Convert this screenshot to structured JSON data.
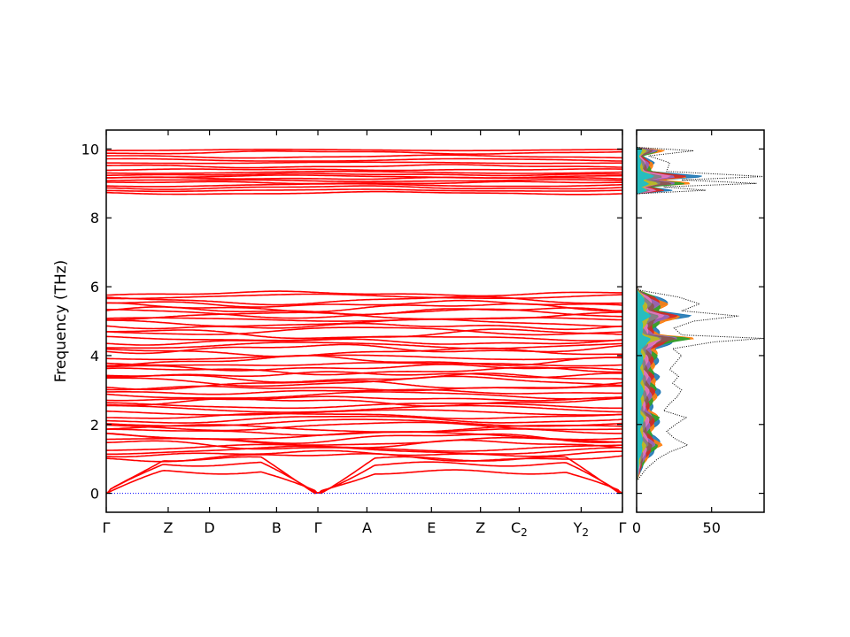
{
  "chart_data": [
    {
      "type": "line",
      "name": "phonon-band-structure",
      "ylabel": "Frequency (THz)",
      "ylim": [
        -0.55,
        10.55
      ],
      "yticks": [
        0,
        2,
        4,
        6,
        8,
        10
      ],
      "kpoint_labels": [
        {
          "label": "Γ",
          "sub": "",
          "x": 0.0
        },
        {
          "label": "Z",
          "sub": "",
          "x": 1.2
        },
        {
          "label": "D",
          "sub": "",
          "x": 2.0
        },
        {
          "label": "B",
          "sub": "",
          "x": 3.3
        },
        {
          "label": "Γ",
          "sub": "",
          "x": 4.1
        },
        {
          "label": "A",
          "sub": "",
          "x": 5.05
        },
        {
          "label": "E",
          "sub": "",
          "x": 6.3
        },
        {
          "label": "Z",
          "sub": "",
          "x": 7.25
        },
        {
          "label": "C",
          "sub": "2",
          "x": 8.0
        },
        {
          "label": "Y",
          "sub": "2",
          "x": 9.2
        },
        {
          "label": "Γ",
          "sub": "",
          "x": 10.0
        }
      ],
      "xlim": [
        0,
        10
      ],
      "color": "#ff0000",
      "zero_line_color": "#0000ff",
      "high_band_frequencies": [
        8.72,
        8.8,
        8.88,
        8.95,
        9.02,
        9.08,
        9.15,
        9.2,
        9.26,
        9.32,
        9.4,
        9.5,
        9.6,
        9.68,
        9.78,
        9.9,
        9.97
      ],
      "mid_band_frequencies": [
        1.05,
        1.15,
        1.25,
        1.32,
        1.4,
        1.5,
        1.6,
        1.68,
        1.78,
        1.88,
        1.95,
        2.05,
        2.15,
        2.25,
        2.35,
        2.45,
        2.55,
        2.65,
        2.75,
        2.85,
        2.95,
        3.05,
        3.15,
        3.25,
        3.35,
        3.45,
        3.55,
        3.65,
        3.75,
        3.85,
        3.95,
        4.1,
        4.2,
        4.3,
        4.4,
        4.5,
        4.62,
        4.72,
        4.85,
        4.95,
        5.05,
        5.15,
        5.22,
        5.3,
        5.4,
        5.5,
        5.6,
        5.72,
        5.8
      ]
    },
    {
      "type": "area",
      "name": "phonon-dos",
      "xlim": [
        0,
        85
      ],
      "xticks": [
        0,
        50
      ],
      "ylim": [
        -0.55,
        10.55
      ],
      "total_line_color": "#000000",
      "total_dos": [
        [
          0.4,
          1
        ],
        [
          0.7,
          6
        ],
        [
          1.0,
          14
        ],
        [
          1.2,
          22
        ],
        [
          1.4,
          34
        ],
        [
          1.6,
          25
        ],
        [
          1.8,
          20
        ],
        [
          2.0,
          26
        ],
        [
          2.2,
          33
        ],
        [
          2.4,
          18
        ],
        [
          2.6,
          22
        ],
        [
          2.8,
          27
        ],
        [
          3.0,
          30
        ],
        [
          3.2,
          24
        ],
        [
          3.4,
          28
        ],
        [
          3.6,
          22
        ],
        [
          3.8,
          26
        ],
        [
          4.0,
          30
        ],
        [
          4.2,
          24
        ],
        [
          4.4,
          52
        ],
        [
          4.5,
          85
        ],
        [
          4.6,
          30
        ],
        [
          4.8,
          25
        ],
        [
          5.0,
          38
        ],
        [
          5.15,
          68
        ],
        [
          5.3,
          30
        ],
        [
          5.5,
          42
        ],
        [
          5.7,
          28
        ],
        [
          5.9,
          2
        ],
        [
          6.0,
          0
        ],
        [
          8.7,
          0
        ],
        [
          8.8,
          46
        ],
        [
          8.9,
          18
        ],
        [
          9.0,
          80
        ],
        [
          9.1,
          30
        ],
        [
          9.2,
          85
        ],
        [
          9.35,
          20
        ],
        [
          9.6,
          22
        ],
        [
          9.8,
          8
        ],
        [
          9.95,
          38
        ],
        [
          10.05,
          0
        ]
      ],
      "partial_colors": [
        "#1f77b4",
        "#ff7f0e",
        "#2ca02c",
        "#d62728",
        "#9467bd",
        "#8c564b",
        "#e377c2",
        "#7f7f7f",
        "#bcbd22",
        "#17becf"
      ]
    }
  ]
}
